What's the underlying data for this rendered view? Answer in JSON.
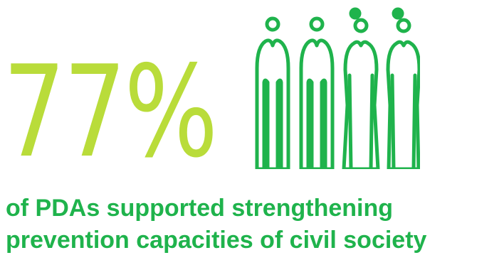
{
  "statistic": {
    "value": "77%"
  },
  "caption": {
    "line1": "of PDAs supported strengthening",
    "line2": "prevention capacities of civil society"
  },
  "icon": {
    "name": "people-group-icon"
  },
  "colors": {
    "stat": "#b9dc3a",
    "primary": "#1fb34c"
  }
}
